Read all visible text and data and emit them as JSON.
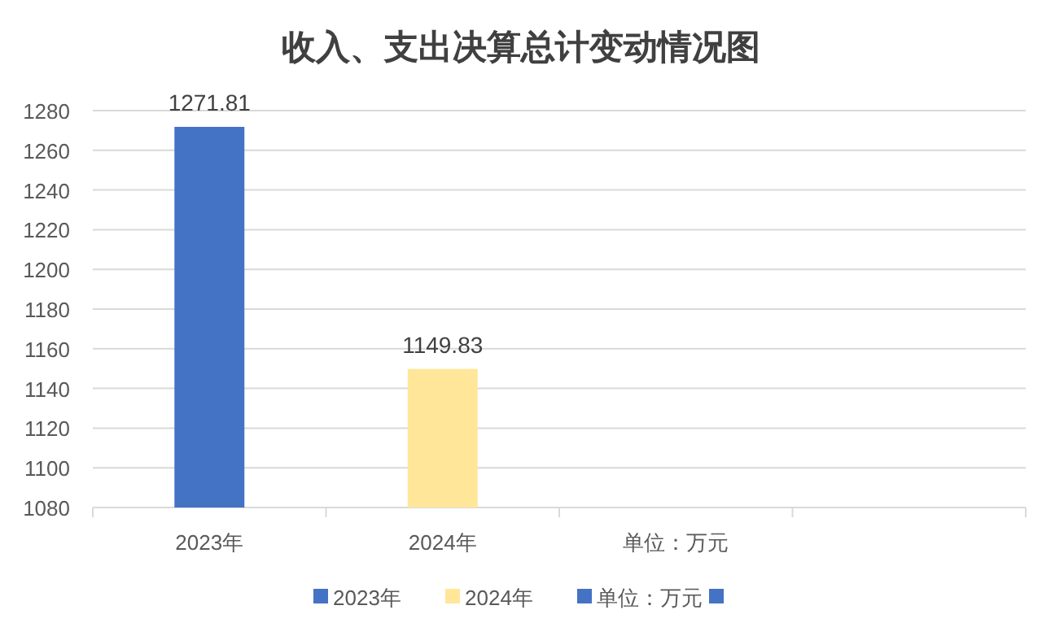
{
  "chart_data": {
    "type": "bar",
    "title": "收入、支出决算总计变动情况图",
    "categories": [
      "2023年",
      "2024年",
      "单位：万元",
      null
    ],
    "stacked": true,
    "series": [
      {
        "name": "2023年",
        "color": "#4472c4",
        "values": [
          1271.81,
          null,
          null,
          null
        ]
      },
      {
        "name": "2024年",
        "color": "#ffe699",
        "values": [
          null,
          1149.83,
          null,
          null
        ]
      },
      {
        "name": "单位：万元",
        "color": "#4472c4",
        "values": [
          null,
          null,
          null,
          null
        ]
      },
      {
        "color": "#4472c4",
        "values": [
          null,
          null,
          null,
          null
        ]
      }
    ],
    "ylim": [
      1080,
      1280
    ],
    "yticks": [
      1080,
      1100,
      1120,
      1140,
      1160,
      1180,
      1200,
      1220,
      1240,
      1260,
      1280
    ],
    "grid": "y",
    "data_labels": true,
    "legend": "bottom"
  }
}
